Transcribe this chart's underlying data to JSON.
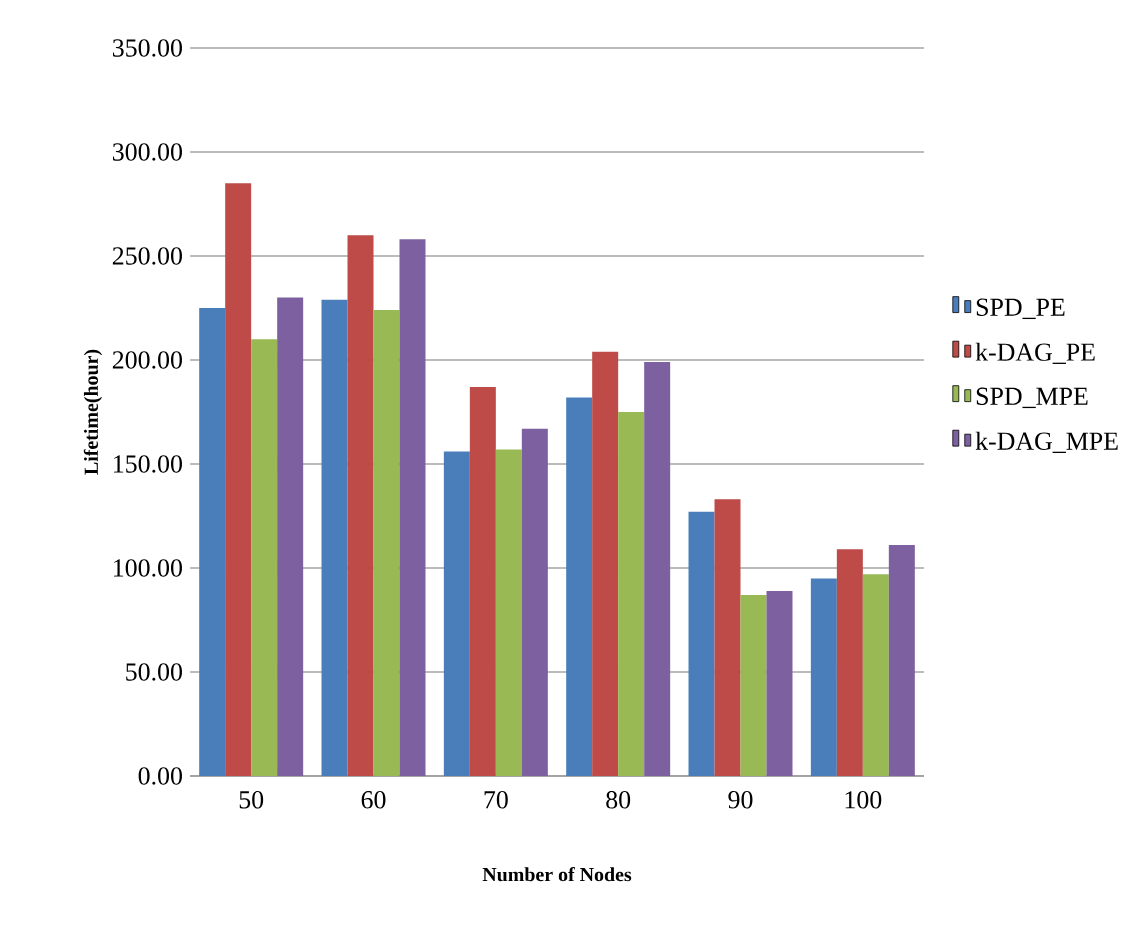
{
  "chart_data": {
    "type": "bar",
    "xlabel": "Number of Nodes",
    "ylabel": "Lifetime(hour)",
    "categories": [
      "50",
      "60",
      "70",
      "80",
      "90",
      "100"
    ],
    "series": [
      {
        "name": "SPD_PE",
        "color": "#4a7ebb",
        "values": [
          225,
          229,
          156,
          182,
          127,
          95
        ]
      },
      {
        "name": "k-DAG_PE",
        "color": "#be4b48",
        "values": [
          285,
          260,
          187,
          204,
          133,
          109
        ]
      },
      {
        "name": "SPD_MPE",
        "color": "#98b954",
        "values": [
          210,
          224,
          157,
          175,
          87,
          97
        ]
      },
      {
        "name": "k-DAG_MPE",
        "color": "#7d60a0",
        "values": [
          230,
          258,
          167,
          199,
          89,
          111
        ]
      }
    ],
    "ylim": [
      0,
      350
    ],
    "yticks": [
      {
        "value": 0,
        "label": "0.00"
      },
      {
        "value": 50,
        "label": "50.00"
      },
      {
        "value": 100,
        "label": "100.00"
      },
      {
        "value": 150,
        "label": "150.00"
      },
      {
        "value": 200,
        "label": "200.00"
      },
      {
        "value": 250,
        "label": "250.00"
      },
      {
        "value": 300,
        "label": "300.00"
      },
      {
        "value": 350,
        "label": "350.00"
      }
    ],
    "grid": "y",
    "legend": "right"
  }
}
